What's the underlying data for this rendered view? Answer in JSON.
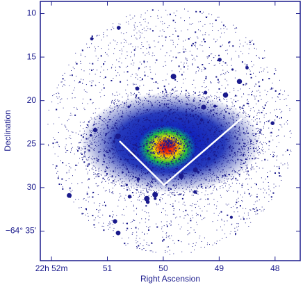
{
  "chart_data": {
    "type": "image",
    "x_label": "Right Ascension",
    "y_label": "Declination",
    "xlim": [
      52.2,
      47.55
    ],
    "ylim": [
      38.4,
      8.6
    ],
    "xticks": [
      {
        "value": 52,
        "label": "22h 52m"
      },
      51,
      50,
      49,
      48
    ],
    "yticks": [
      10,
      15,
      20,
      25,
      30,
      {
        "value": 35,
        "label": "−64° 35'"
      }
    ],
    "color": "#1a1a8c"
  }
}
